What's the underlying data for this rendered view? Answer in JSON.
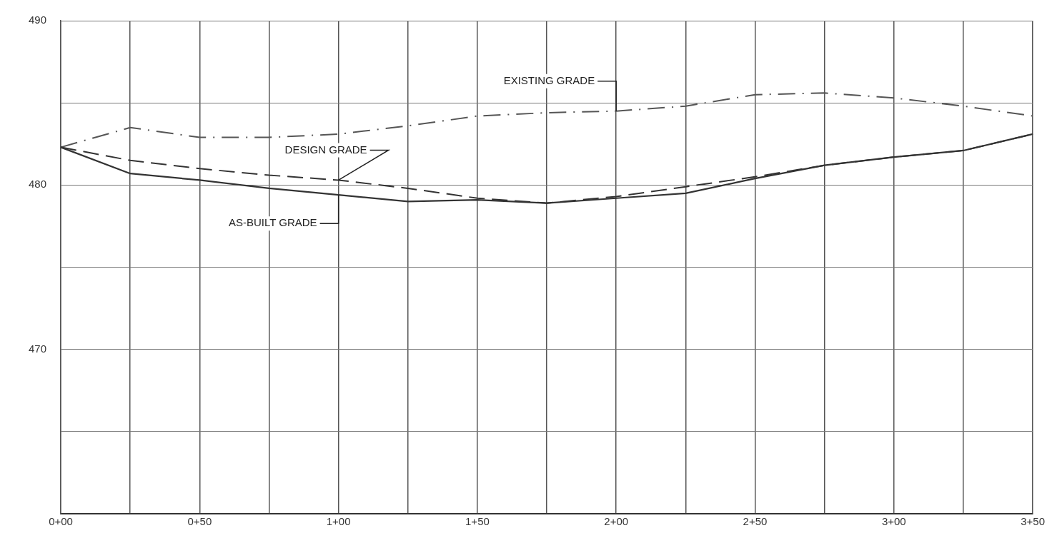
{
  "chart_data": {
    "type": "line",
    "categories": [
      "0+00",
      null,
      "0+50",
      null,
      "1+00",
      null,
      "1+50",
      null,
      "2+00",
      null,
      "2+50",
      null,
      "3+00",
      null,
      "3+50"
    ],
    "ylim": [
      460,
      490
    ],
    "yticks": [
      {
        "value": 460,
        "label": null
      },
      {
        "value": 465,
        "label": null
      },
      470,
      {
        "value": 475,
        "label": null
      },
      480,
      {
        "value": 485,
        "label": null
      },
      490
    ],
    "grid": true,
    "marker": "none",
    "series": [
      {
        "color": "#333333",
        "line_style": "solid",
        "values": [
          482.3,
          480.7,
          480.3,
          479.8,
          479.4,
          479.0,
          479.1,
          478.9,
          479.2,
          479.5,
          480.4,
          481.2,
          481.7,
          482.1,
          483.1
        ]
      },
      {
        "color": "#333333",
        "line_style": "dashed",
        "values": [
          482.3,
          481.5,
          481.0,
          480.6,
          480.3,
          479.8,
          479.2,
          478.9,
          479.3,
          479.9,
          480.5,
          481.2,
          481.7,
          482.1,
          483.1
        ]
      },
      {
        "color": "#555555",
        "line_style": "dotted",
        "values": [
          482.3,
          483.5,
          482.9,
          482.9,
          483.1,
          483.6,
          484.2,
          484.4,
          484.5,
          484.8,
          485.5,
          485.6,
          485.3,
          484.8,
          484.2
        ]
      }
    ],
    "annotations": [
      {
        "text": "EXISTING GRADE",
        "x": "2+00",
        "y": 484.5
      },
      {
        "text": "DESIGN GRADE",
        "x": "1+00",
        "y": 480.3
      },
      {
        "text": "AS-BUILT GRADE",
        "x": "1+00",
        "y": 479.4
      }
    ]
  }
}
